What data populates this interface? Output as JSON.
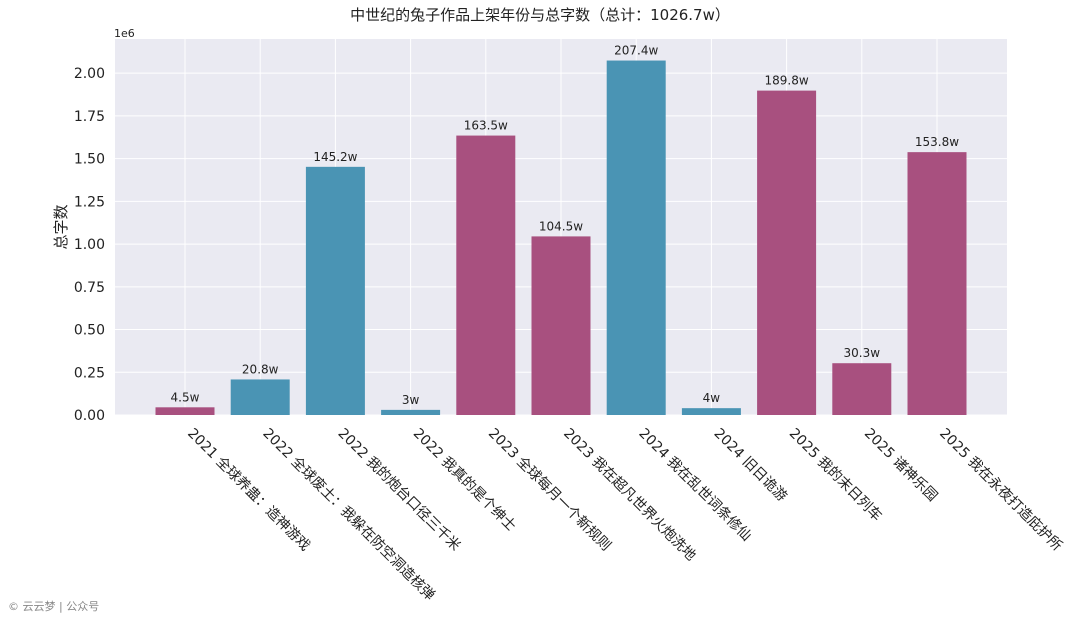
{
  "chart_data": {
    "type": "bar",
    "title": "中世纪的兔子作品上架年份与总字数（总计：1026.7w）",
    "ylabel": "总字数",
    "xlabel": "",
    "y_exponent_label": "1e6",
    "ylim": [
      0,
      2200000
    ],
    "yticks": [
      0,
      250000,
      500000,
      750000,
      1000000,
      1250000,
      1500000,
      1750000,
      2000000
    ],
    "ytick_labels": [
      "0.00",
      "0.25",
      "0.50",
      "0.75",
      "1.00",
      "1.25",
      "1.50",
      "1.75",
      "2.00"
    ],
    "grid": true,
    "categories": [
      "2021 全球养蛊：造神游戏",
      "2022 全球废土：我躲在防空洞造核弹",
      "2022 我的炮台口径三千米",
      "2022 我真的是个绅士",
      "2023 全球每月一个新规则",
      "2023 我在超凡世界火炮洗地",
      "2024 我在乱世词条修仙",
      "2024 旧日诡游",
      "2025 我的末日列车",
      "2025 诸神乐园",
      "2025 我在永夜打造庇护所"
    ],
    "values": [
      45000,
      208000,
      1452000,
      30000,
      1635000,
      1045000,
      2074000,
      40000,
      1898000,
      303000,
      1538000
    ],
    "data_labels": [
      "4.5w",
      "20.8w",
      "145.2w",
      "3w",
      "163.5w",
      "104.5w",
      "207.4w",
      "4w",
      "189.8w",
      "30.3w",
      "153.8w"
    ],
    "bar_colors": [
      "#a8507f",
      "#4a94b4",
      "#4a94b4",
      "#4a94b4",
      "#a8507f",
      "#a8507f",
      "#4a94b4",
      "#4a94b4",
      "#a8507f",
      "#a8507f",
      "#a8507f"
    ]
  },
  "colors": {
    "plot_background": "#eaeaf2",
    "grid": "#ffffff"
  },
  "watermark": "© 云云梦 | 公众号"
}
